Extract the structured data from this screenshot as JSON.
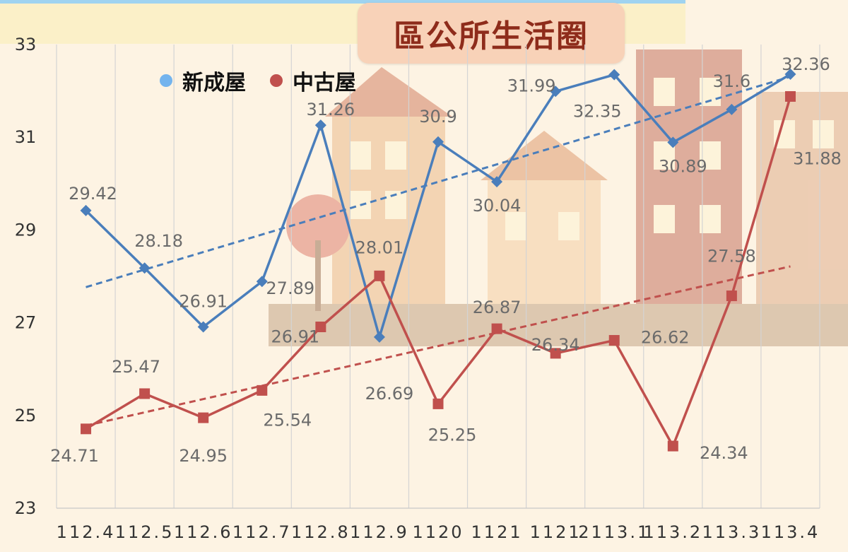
{
  "title": "區公所生活圈",
  "chart_data": {
    "type": "line",
    "categories": [
      "112.4",
      "112.5",
      "112.6",
      "112.7",
      "112.8",
      "112.9",
      "11201",
      "11211",
      "11212",
      "113.1",
      "113.2",
      "113.3",
      "113.4"
    ],
    "x_tick_labels": [
      "112.4",
      "112.5",
      "112.6",
      "112.7",
      "112.8",
      "112.9",
      "1120",
      "1121",
      "1121",
      "2113.1",
      "113.2",
      "113.3",
      "113.4"
    ],
    "ylim": [
      23,
      33
    ],
    "yticks": [
      23,
      25,
      27,
      29,
      31,
      33
    ],
    "grid": "vertical",
    "legend_position": "top-left",
    "series": [
      {
        "name": "新成屋",
        "color": "#4a7ebb",
        "legend_color": "#74b4ee",
        "marker": "diamond",
        "trendline": "linear",
        "values": [
          29.42,
          28.18,
          26.91,
          27.89,
          31.26,
          26.69,
          30.9,
          30.04,
          31.99,
          32.35,
          30.89,
          31.6,
          32.36
        ]
      },
      {
        "name": "中古屋",
        "color": "#c0504d",
        "legend_color": "#c0504d",
        "marker": "square",
        "trendline": "linear",
        "values": [
          24.71,
          25.47,
          24.95,
          25.54,
          26.91,
          28.01,
          25.25,
          26.87,
          26.34,
          26.62,
          24.34,
          27.58,
          31.88
        ]
      }
    ]
  }
}
